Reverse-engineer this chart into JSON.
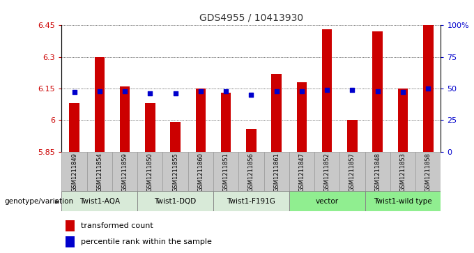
{
  "title": "GDS4955 / 10413930",
  "samples": [
    "GSM1211849",
    "GSM1211854",
    "GSM1211859",
    "GSM1211850",
    "GSM1211855",
    "GSM1211860",
    "GSM1211851",
    "GSM1211856",
    "GSM1211861",
    "GSM1211847",
    "GSM1211852",
    "GSM1211857",
    "GSM1211848",
    "GSM1211853",
    "GSM1211858"
  ],
  "bar_values": [
    6.08,
    6.3,
    6.16,
    6.08,
    5.99,
    6.15,
    6.13,
    5.96,
    6.22,
    6.18,
    6.43,
    6.0,
    6.42,
    6.15,
    6.45
  ],
  "percentile_values": [
    47,
    48,
    48,
    46,
    46,
    48,
    48,
    45,
    48,
    48,
    49,
    49,
    48,
    47,
    50
  ],
  "ymin": 5.85,
  "ymax": 6.45,
  "yticks": [
    5.85,
    6.0,
    6.15,
    6.3,
    6.45
  ],
  "ytick_labels": [
    "5.85",
    "6",
    "6.15",
    "6.3",
    "6.45"
  ],
  "right_yticks": [
    0,
    25,
    50,
    75,
    100
  ],
  "right_ytick_labels": [
    "0",
    "25",
    "50",
    "75",
    "100%"
  ],
  "groups": [
    {
      "label": "Twist1-AQA",
      "start": 0,
      "end": 2,
      "color": "#d8ead8"
    },
    {
      "label": "Twist1-DQD",
      "start": 3,
      "end": 5,
      "color": "#d8ead8"
    },
    {
      "label": "Twist1-F191G",
      "start": 6,
      "end": 8,
      "color": "#d8ead8"
    },
    {
      "label": "vector",
      "start": 9,
      "end": 11,
      "color": "#90ee90"
    },
    {
      "label": "Twist1-wild type",
      "start": 12,
      "end": 14,
      "color": "#90ee90"
    }
  ],
  "group_label": "genotype/variation",
  "bar_color": "#cc0000",
  "percentile_color": "#0000cc",
  "grid_color": "#000000",
  "tick_color_left": "#cc0000",
  "tick_color_right": "#0000cc",
  "legend_bar_label": "transformed count",
  "legend_perc_label": "percentile rank within the sample",
  "bar_width": 0.4,
  "sample_bg_color": "#c8c8c8",
  "sample_border_color": "#999999"
}
